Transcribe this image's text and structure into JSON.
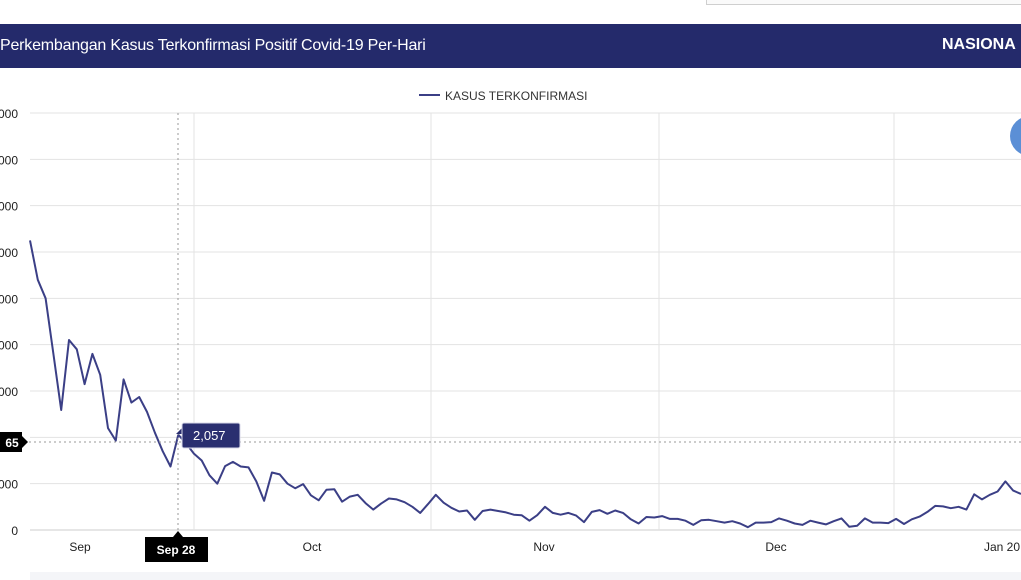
{
  "header": {
    "title": "Perkembangan Kasus Terkonfirmasi Positif Covid-19 Per-Hari",
    "scope_label": "NASIONA"
  },
  "colors": {
    "header_bg": "#242a6b",
    "series_line": "#3b3f86",
    "tooltip_bg": "#2a2f70",
    "crosshair_label_bg": "#000000",
    "grid": "#e3e3e3",
    "fab": "#5b8fd6"
  },
  "chart_data": {
    "type": "line",
    "title": "",
    "xlabel": "",
    "ylabel": "",
    "ylim": [
      0,
      9000
    ],
    "y_tick_labels": [
      "0",
      "000",
      "000",
      "000",
      "000",
      "000",
      "000",
      "000",
      "000",
      "000"
    ],
    "x_tick_labels": [
      "Sep",
      "Oct",
      "Nov",
      "Dec",
      "Jan 20"
    ],
    "legend": "top-center",
    "grid": true,
    "series": [
      {
        "name": "KASUS TERKONFIRMASI",
        "values": [
          6250,
          5400,
          5000,
          3800,
          2590,
          4100,
          3900,
          3150,
          3800,
          3350,
          2200,
          1930,
          3250,
          2750,
          2870,
          2550,
          2100,
          1700,
          1370,
          2057,
          1870,
          1650,
          1500,
          1180,
          1000,
          1380,
          1470,
          1370,
          1350,
          1050,
          630,
          1240,
          1200,
          1000,
          900,
          990,
          750,
          640,
          870,
          880,
          610,
          720,
          760,
          580,
          440,
          570,
          680,
          660,
          600,
          500,
          370,
          560,
          760,
          590,
          480,
          400,
          420,
          220,
          410,
          440,
          410,
          380,
          330,
          320,
          200,
          320,
          500,
          370,
          330,
          370,
          310,
          170,
          390,
          430,
          350,
          420,
          370,
          230,
          140,
          280,
          270,
          300,
          240,
          240,
          200,
          110,
          210,
          220,
          190,
          160,
          190,
          140,
          60,
          160,
          160,
          170,
          250,
          200,
          140,
          110,
          200,
          160,
          120,
          190,
          250,
          70,
          90,
          250,
          160,
          160,
          150,
          240,
          130,
          230,
          290,
          390,
          520,
          510,
          470,
          500,
          440,
          770,
          660,
          760,
          830,
          1050,
          850,
          780
        ]
      }
    ],
    "hover": {
      "y_label": "65",
      "x_label": "Sep 28",
      "value_label": "2,057"
    }
  }
}
